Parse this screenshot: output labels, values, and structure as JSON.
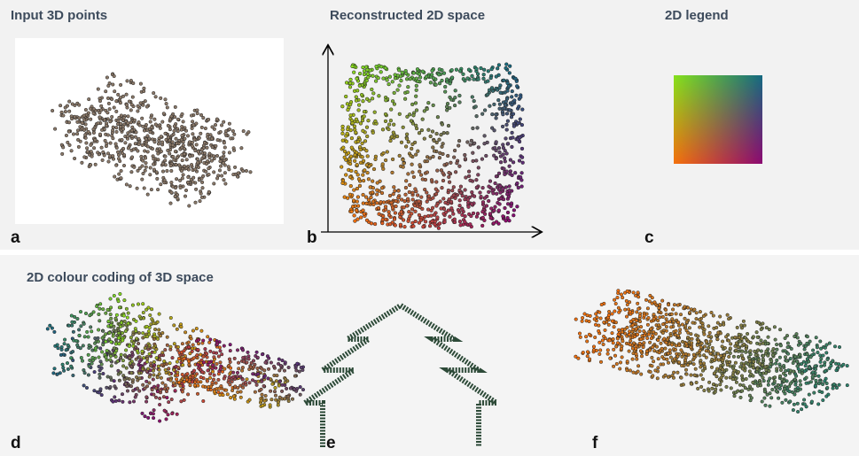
{
  "panels": {
    "a": {
      "title": "Input 3D points",
      "label": "a"
    },
    "b": {
      "title": "Reconstructed 2D space",
      "label": "b"
    },
    "c": {
      "title": "2D legend",
      "label": "c"
    }
  },
  "bottom": {
    "title": "2D colour coding of 3D space",
    "labels": [
      "d",
      "e",
      "f"
    ]
  }
}
